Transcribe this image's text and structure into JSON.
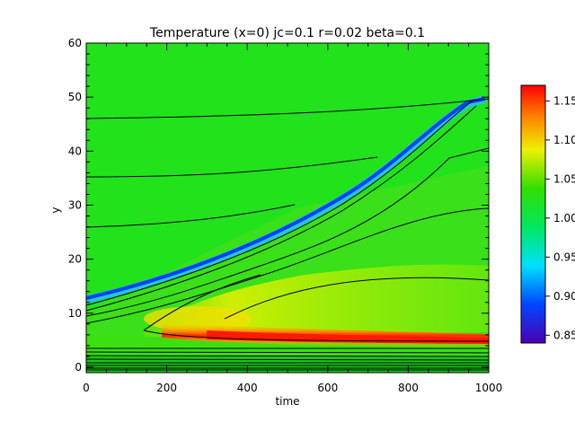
{
  "chart_data": {
    "type": "heatmap",
    "title": "Temperature (x=0) jc=0.1 r=0.02 beta=0.1",
    "xlabel": "time",
    "ylabel": "y",
    "xlim": [
      0,
      1000
    ],
    "ylim": [
      -1,
      60
    ],
    "xticks": [
      "0",
      "200",
      "400",
      "600",
      "800",
      "1000"
    ],
    "yticks": [
      "0",
      "10",
      "20",
      "30",
      "40",
      "50",
      "60"
    ],
    "colorbar": {
      "range": [
        0.84,
        1.17
      ],
      "ticks": [
        "0.85",
        "0.90",
        "0.95",
        "1.00",
        "1.05",
        "1.10",
        "1.15"
      ],
      "colormap": "rainbow"
    },
    "background_value": 1.02,
    "features": [
      {
        "name": "cold front",
        "value": 0.85,
        "t_start": 0,
        "y_start": 13,
        "t_end": 950,
        "y_end": 49
      },
      {
        "name": "hot layer",
        "value": 1.17,
        "y_center": 6,
        "t_range": [
          200,
          1000
        ]
      },
      {
        "name": "warm region",
        "value": 1.09,
        "y_range": [
          7,
          18
        ],
        "t_range": [
          150,
          1000
        ]
      }
    ]
  }
}
